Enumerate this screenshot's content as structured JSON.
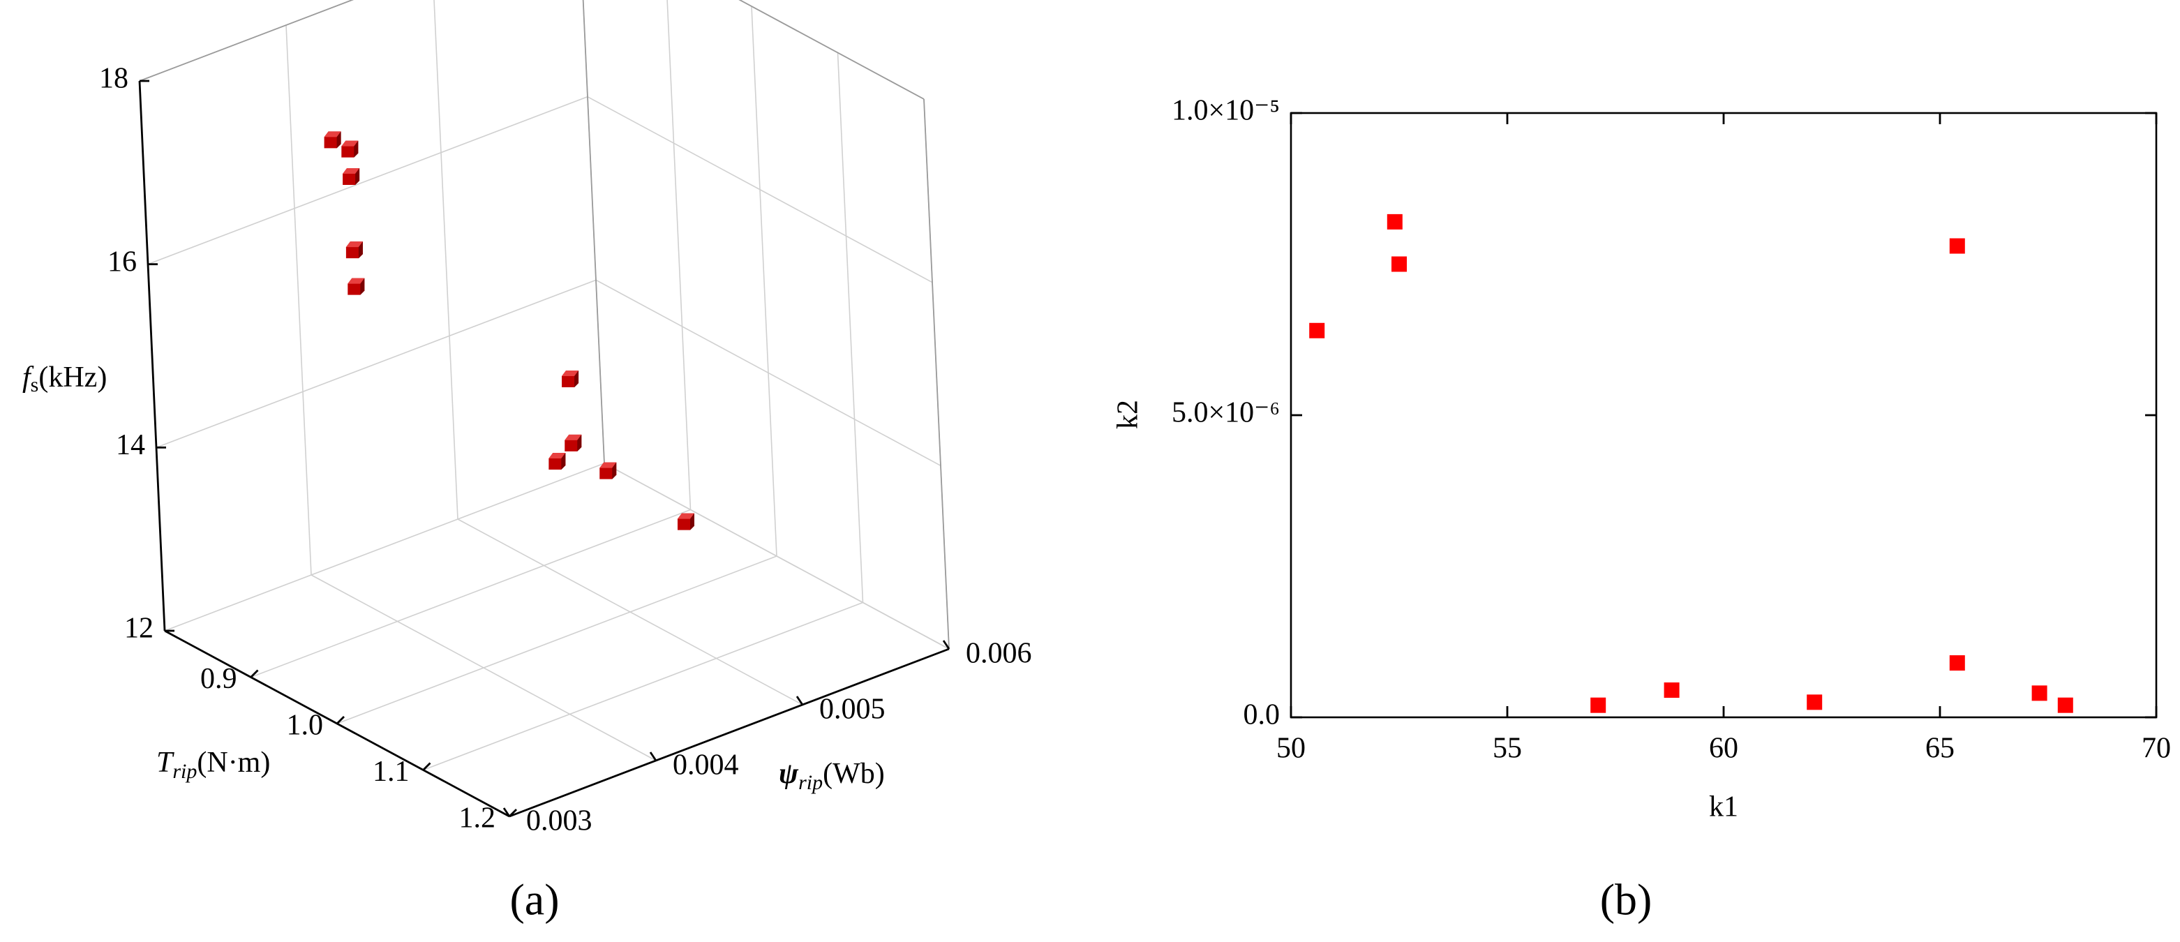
{
  "chart_data": [
    {
      "type": "scatter3d",
      "caption": "(a)",
      "xlabel": {
        "symbol": "T",
        "subscript": "rip",
        "unit": "(N·m)"
      },
      "ylabel": {
        "symbol": "ψ",
        "subscript": "rip",
        "unit": "(Wb)"
      },
      "zlabel": {
        "symbol": "f",
        "subscript": "s",
        "unit": "(kHz)"
      },
      "x": [
        0.92,
        0.94,
        0.94,
        0.94,
        0.94,
        1.03,
        1.03,
        1.01,
        1.07,
        1.16
      ],
      "y": [
        0.0036,
        0.0036,
        0.0036,
        0.0036,
        0.0036,
        0.0045,
        0.0045,
        0.0045,
        0.0045,
        0.0045
      ],
      "z": [
        17.6,
        17.6,
        17.3,
        16.5,
        16.1,
        15.0,
        14.3,
        14.0,
        14.2,
        14.1
      ],
      "color": "#c00000",
      "xlim": [
        0.8,
        1.2
      ],
      "xticks": [
        0.9,
        {
          "value": 1,
          "label": "1.0"
        },
        1.1,
        1.2
      ],
      "ylim": [
        0.003,
        0.006
      ],
      "yticks": [
        0.003,
        0.004,
        0.005,
        0.006
      ],
      "zlim": [
        12,
        18
      ],
      "zticks": [
        12,
        14,
        16,
        18
      ],
      "grid": true
    },
    {
      "type": "scatter",
      "caption": "(b)",
      "xlabel": "k1",
      "ylabel": "k2",
      "x": [
        50.6,
        52.4,
        52.5,
        65.4,
        57.1,
        58.8,
        62.1,
        65.4,
        67.3,
        67.9
      ],
      "y": [
        6.4e-06,
        8.2e-06,
        7.5e-06,
        7.8e-06,
        2e-07,
        4.5e-07,
        2.5e-07,
        9e-07,
        4e-07,
        2e-07
      ],
      "color": "#ff0000",
      "xlim": [
        50,
        70
      ],
      "xticks": [
        50,
        55,
        60,
        65,
        70
      ],
      "ylim": [
        0,
        1e-05
      ],
      "yticks": [
        {
          "value": 0,
          "label": "0.0"
        },
        {
          "value": 5e-06,
          "label": "5.0×10⁻⁶"
        },
        {
          "value": 1e-05,
          "label": "1.0×10⁻⁵"
        }
      ],
      "grid": false
    }
  ]
}
